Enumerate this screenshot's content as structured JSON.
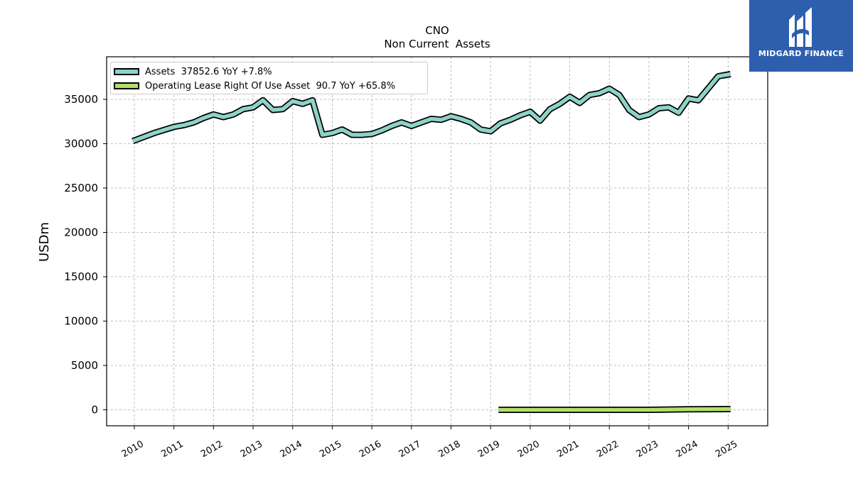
{
  "chart_data": {
    "type": "line",
    "title": "CNO",
    "subtitle": "Non Current  Assets",
    "ylabel": "USDm",
    "xlabel": "",
    "ylim": [
      -1800,
      39800
    ],
    "xlim": [
      2009.3,
      2026.0
    ],
    "yticks": [
      0,
      5000,
      10000,
      15000,
      20000,
      25000,
      30000,
      35000
    ],
    "ytick_labels": [
      "0",
      "5000",
      "10000",
      "15000",
      "20000",
      "25000",
      "30000",
      "35000"
    ],
    "xticks": [
      2010,
      2011,
      2012,
      2013,
      2014,
      2015,
      2016,
      2017,
      2018,
      2019,
      2020,
      2021,
      2022,
      2023,
      2024,
      2025
    ],
    "xtick_labels": [
      "2010",
      "2011",
      "2012",
      "2013",
      "2014",
      "2015",
      "2016",
      "2017",
      "2018",
      "2019",
      "2020",
      "2021",
      "2022",
      "2023",
      "2024",
      "2025"
    ],
    "grid": true,
    "legend_position": "top-left",
    "series": [
      {
        "name": "Assets",
        "legend_label": "Assets  37852.6 YoY +7.8%",
        "color": "#8dd3c7",
        "points": [
          [
            2009.96,
            30300
          ],
          [
            2010.5,
            31200
          ],
          [
            2011.0,
            31900
          ],
          [
            2011.25,
            32100
          ],
          [
            2011.5,
            32400
          ],
          [
            2011.75,
            32900
          ],
          [
            2012.0,
            33300
          ],
          [
            2012.25,
            33000
          ],
          [
            2012.5,
            33300
          ],
          [
            2012.75,
            33900
          ],
          [
            2013.0,
            34100
          ],
          [
            2013.25,
            34900
          ],
          [
            2013.5,
            33800
          ],
          [
            2013.75,
            33900
          ],
          [
            2014.0,
            34800
          ],
          [
            2014.25,
            34500
          ],
          [
            2014.5,
            34900
          ],
          [
            2014.75,
            31000
          ],
          [
            2015.0,
            31200
          ],
          [
            2015.25,
            31600
          ],
          [
            2015.5,
            31000
          ],
          [
            2015.75,
            31000
          ],
          [
            2016.0,
            31100
          ],
          [
            2016.25,
            31500
          ],
          [
            2016.5,
            32000
          ],
          [
            2016.75,
            32400
          ],
          [
            2017.0,
            32000
          ],
          [
            2017.25,
            32400
          ],
          [
            2017.5,
            32800
          ],
          [
            2017.75,
            32700
          ],
          [
            2018.0,
            33100
          ],
          [
            2018.25,
            32800
          ],
          [
            2018.5,
            32400
          ],
          [
            2018.75,
            31600
          ],
          [
            2019.0,
            31400
          ],
          [
            2019.25,
            32300
          ],
          [
            2019.5,
            32700
          ],
          [
            2019.75,
            33200
          ],
          [
            2020.0,
            33600
          ],
          [
            2020.25,
            32600
          ],
          [
            2020.5,
            33900
          ],
          [
            2020.75,
            34500
          ],
          [
            2021.0,
            35300
          ],
          [
            2021.25,
            34600
          ],
          [
            2021.5,
            35500
          ],
          [
            2021.75,
            35700
          ],
          [
            2022.0,
            36200
          ],
          [
            2022.25,
            35500
          ],
          [
            2022.5,
            33800
          ],
          [
            2022.75,
            33000
          ],
          [
            2023.0,
            33300
          ],
          [
            2023.25,
            34000
          ],
          [
            2023.5,
            34100
          ],
          [
            2023.75,
            33500
          ],
          [
            2024.0,
            35100
          ],
          [
            2024.25,
            34900
          ],
          [
            2024.75,
            37600
          ],
          [
            2025.06,
            37850
          ]
        ]
      },
      {
        "name": "Operating Lease Right Of Use Asset",
        "legend_label": "Operating Lease Right Of Use Asset  90.7 YoY +65.8%",
        "color": "#b3de69",
        "points": [
          [
            2019.2,
            0
          ],
          [
            2020.0,
            0
          ],
          [
            2021.0,
            0
          ],
          [
            2022.0,
            0
          ],
          [
            2023.0,
            0
          ],
          [
            2024.0,
            60
          ],
          [
            2025.06,
            90.7
          ]
        ]
      }
    ]
  },
  "logo": {
    "text": "MIDGARD FINANCE",
    "background": "#2d5fae"
  }
}
